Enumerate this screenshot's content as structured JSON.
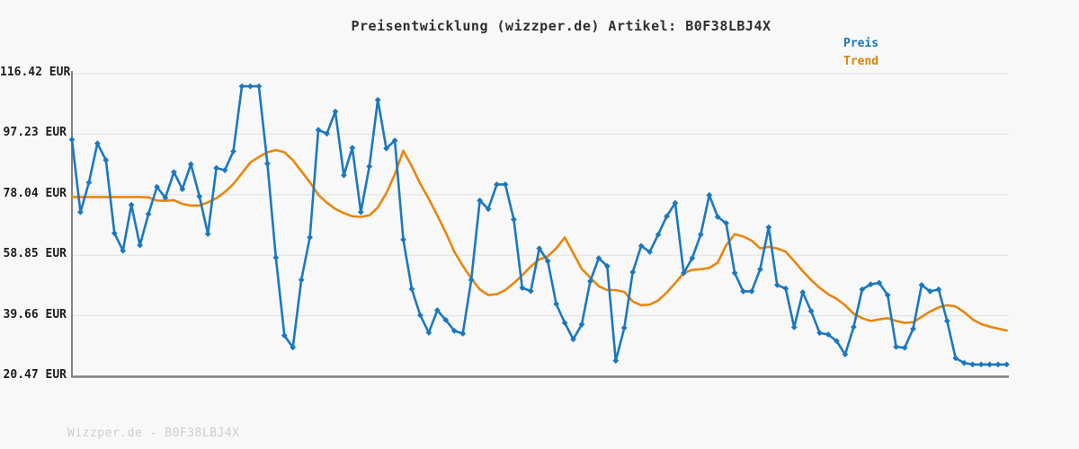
{
  "header": {
    "title": "Preisentwicklung (wizzper.de) Artikel: B0F38LBJ4X"
  },
  "legend": {
    "items": [
      {
        "label": "Preis",
        "color": "#1a76c1"
      },
      {
        "label": "Trend",
        "color": "#d9830a"
      }
    ]
  },
  "footer": {
    "text": "Wizzper.de - B0F38LBJ4X"
  },
  "colors": {
    "background": "#f8f8f8",
    "gridline": "#e4e4e4",
    "axis": "#828282",
    "price_line": "#1b78c0",
    "trend_line": "#e8860d",
    "title_text": "#2e2e2e",
    "tick_text": "#1c1c1c",
    "footer_text": "#cdcdcd"
  },
  "chart_data": {
    "type": "line",
    "title": "Preisentwicklung (wizzper.de) Artikel: B0F38LBJ4X",
    "ylabel": "EUR",
    "xlabel": "",
    "grid": true,
    "legend_position": "top-right",
    "y_range": [
      20.47,
      116.42
    ],
    "y_ticks": [
      {
        "value": 116.42,
        "label": "116.42 EUR"
      },
      {
        "value": 97.23,
        "label": "97.23 EUR"
      },
      {
        "value": 78.04,
        "label": "78.04 EUR"
      },
      {
        "value": 58.85,
        "label": "58.85 EUR"
      },
      {
        "value": 39.66,
        "label": "39.66 EUR"
      },
      {
        "value": 20.47,
        "label": "20.47 EUR"
      }
    ],
    "series": [
      {
        "name": "Preis",
        "color": "#1b78c0",
        "marker": "diamond",
        "values": [
          95.5,
          72.5,
          81.9,
          94.3,
          89,
          65.8,
          60.3,
          74.8,
          62,
          71.9,
          80.5,
          77.1,
          85.2,
          79.8,
          87.7,
          77.5,
          65.6,
          86.5,
          85.8,
          91.8,
          112.4,
          112.4,
          112.4,
          87.9,
          58.1,
          33.4,
          29.6,
          51,
          64.5,
          98.6,
          97.4,
          104.4,
          84.2,
          92.9,
          72.5,
          87,
          108.1,
          92.7,
          95.2,
          63.8,
          48.1,
          39.8,
          34.3,
          41.4,
          38.3,
          34.9,
          34,
          51,
          76.2,
          73.5,
          81.3,
          81.3,
          70.2,
          48.5,
          47.5,
          61,
          57,
          43.4,
          37.4,
          32.2,
          36.9,
          50.6,
          57.9,
          55.4,
          25.4,
          35.8,
          53.5,
          61.8,
          59.9,
          65.4,
          71.2,
          75.4,
          53.2,
          57.9,
          65.4,
          77.9,
          71,
          69,
          53.2,
          47.4,
          47.4,
          54.4,
          67.7,
          49.4,
          48.3,
          36,
          47.1,
          41.1,
          34.2,
          33.7,
          31.6,
          27.4,
          36.1,
          48,
          49.6,
          50.1,
          46.2,
          29.8,
          29.5,
          35.5,
          49.4,
          47.4,
          48,
          38,
          26.2,
          24.7,
          24.2,
          24.2,
          24.2,
          24.2,
          24.2
        ]
      },
      {
        "name": "Trend",
        "color": "#e8860d",
        "marker": "none",
        "values": [
          77.3,
          77.3,
          77.3,
          77.3,
          77.3,
          77.3,
          77.3,
          77.3,
          77.3,
          77.2,
          76.2,
          76.1,
          76.3,
          75.1,
          74.6,
          74.6,
          75.6,
          76.9,
          78.9,
          81.4,
          84.8,
          88.3,
          90,
          91.5,
          92.2,
          91.5,
          89,
          85.5,
          82,
          78,
          75.5,
          73.5,
          72.2,
          71.2,
          71,
          71.5,
          74,
          78.5,
          84.5,
          92,
          87,
          81.5,
          76.7,
          71.5,
          66,
          60,
          55.5,
          51.5,
          48,
          46.2,
          46.5,
          47.8,
          50,
          52.5,
          55.3,
          57.5,
          58.5,
          61,
          64.5,
          59.5,
          54.5,
          51.8,
          49,
          47.8,
          47.8,
          47.2,
          44.2,
          43,
          43.2,
          44.5,
          47,
          50,
          53.2,
          54.2,
          54.4,
          54.8,
          56.5,
          62,
          65.5,
          64.8,
          63.5,
          61,
          61.5,
          61,
          60,
          57,
          53.8,
          51,
          48.5,
          46.5,
          45,
          43,
          40.3,
          38.9,
          38,
          38.5,
          38.9,
          38,
          37.4,
          37.6,
          39.3,
          41,
          42.3,
          43,
          42.6,
          40.8,
          38.5,
          37,
          36.2,
          35.6,
          35
        ]
      }
    ]
  }
}
